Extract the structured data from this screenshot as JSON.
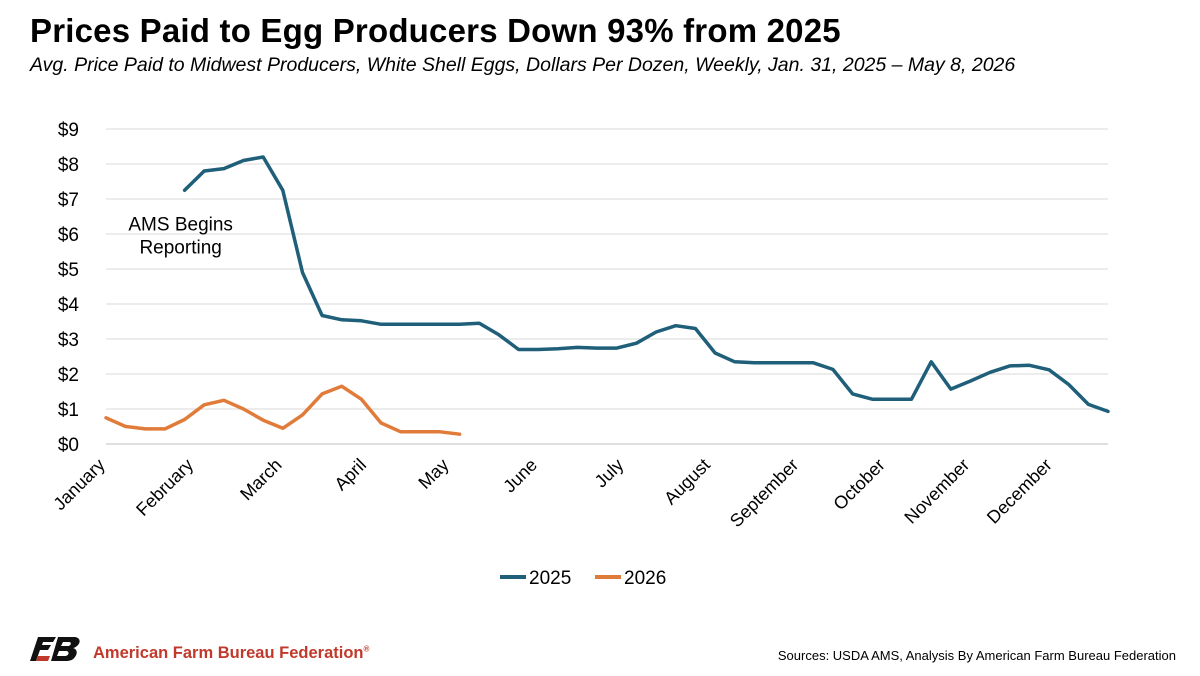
{
  "title": "Prices Paid to Egg Producers Down 93% from 2025",
  "subtitle": "Avg. Price Paid to Midwest Producers, White Shell Eggs, Dollars Per Dozen, Weekly, Jan. 31, 2025 – May 8, 2026",
  "footer": {
    "organization": "American Farm Bureau Federation",
    "registered_mark": "®",
    "sources": "Sources: USDA AMS, Analysis By American Farm Bureau Federation"
  },
  "colors": {
    "series_2025": "#1f5f7a",
    "series_2026": "#e07b39",
    "grid": "#d9d9d9",
    "brand_red": "#c0392b"
  },
  "chart_data": {
    "type": "line",
    "title": "Prices Paid to Egg Producers Down 93% from 2025",
    "ylim": [
      0,
      9
    ],
    "yticks": [
      0,
      1,
      2,
      3,
      4,
      5,
      6,
      7,
      8,
      9
    ],
    "ytick_labels": [
      "$0",
      "$1",
      "$2",
      "$3",
      "$4",
      "$5",
      "$6",
      "$7",
      "$8",
      "$9"
    ],
    "x_week_range": [
      1,
      52
    ],
    "month_labels": [
      {
        "label": "January",
        "week": 1
      },
      {
        "label": "February",
        "week": 5.5
      },
      {
        "label": "March",
        "week": 10
      },
      {
        "label": "April",
        "week": 14.3
      },
      {
        "label": "May",
        "week": 18.5
      },
      {
        "label": "June",
        "week": 23
      },
      {
        "label": "July",
        "week": 27.4
      },
      {
        "label": "August",
        "week": 31.8
      },
      {
        "label": "September",
        "week": 36.3
      },
      {
        "label": "October",
        "week": 40.7
      },
      {
        "label": "November",
        "week": 45
      },
      {
        "label": "December",
        "week": 49.2
      }
    ],
    "grid": true,
    "legend_position": "bottom",
    "annotation": {
      "lines": [
        "AMS Begins",
        "Reporting"
      ],
      "week": 4.8,
      "y": 6.1
    },
    "series": [
      {
        "name": "2025",
        "x": [
          5,
          6,
          7,
          8,
          9,
          10,
          11,
          12,
          13,
          14,
          15,
          16,
          17,
          18,
          19,
          20,
          21,
          22,
          23,
          24,
          25,
          26,
          27,
          28,
          29,
          30,
          31,
          32,
          33,
          34,
          35,
          36,
          37,
          38,
          39,
          40,
          41,
          42,
          43,
          44,
          45,
          46,
          47,
          48,
          49,
          50,
          51,
          52
        ],
        "values": [
          7.25,
          7.8,
          7.87,
          8.1,
          8.2,
          7.25,
          4.9,
          3.67,
          3.55,
          3.52,
          3.42,
          3.42,
          3.42,
          3.42,
          3.42,
          3.45,
          3.12,
          2.7,
          2.7,
          2.72,
          2.76,
          2.74,
          2.74,
          2.88,
          3.2,
          3.38,
          3.3,
          2.6,
          2.35,
          2.32,
          2.32,
          2.32,
          2.32,
          2.13,
          1.43,
          1.28,
          1.28,
          1.28,
          2.35,
          1.57,
          1.8,
          2.05,
          2.23,
          2.25,
          2.12,
          1.7,
          1.13,
          0.93
        ]
      },
      {
        "name": "2026",
        "x": [
          1,
          2,
          3,
          4,
          5,
          6,
          7,
          8,
          9,
          10,
          11,
          12,
          13,
          14,
          15,
          16,
          17,
          18,
          19
        ],
        "values": [
          0.75,
          0.5,
          0.43,
          0.43,
          0.7,
          1.12,
          1.25,
          1.0,
          0.68,
          0.45,
          0.83,
          1.43,
          1.65,
          1.28,
          0.6,
          0.35,
          0.35,
          0.35,
          0.28
        ]
      }
    ]
  }
}
